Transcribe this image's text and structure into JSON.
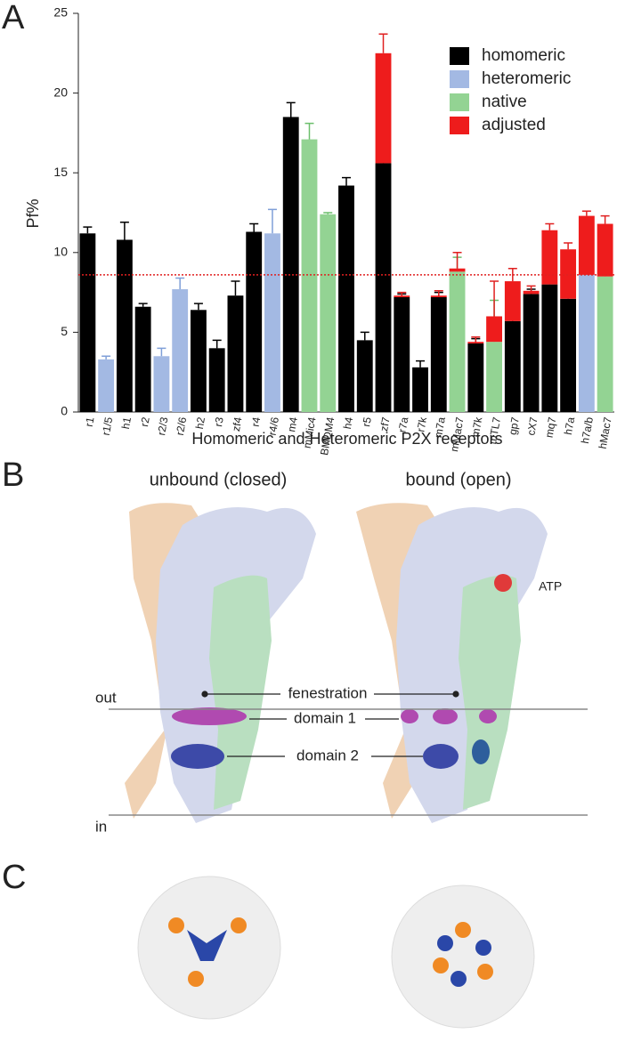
{
  "chart_data": {
    "type": "bar",
    "ylabel": "Pf%",
    "xlabel": "Homomeric and Heteromeric P2X receptors",
    "categories": [
      "r1",
      "r1/5",
      "h1",
      "r2",
      "r2/3",
      "r2/6",
      "h2",
      "r3",
      "zf4",
      "r4",
      "r4/6",
      "m4",
      "mMic4",
      "BMDM4",
      "h4",
      "r5",
      "zf7",
      "r7a",
      "r7k",
      "m7a",
      "mMac7",
      "m7k",
      "mTL7",
      "gp7",
      "cX7",
      "mq7",
      "h7a",
      "h7a/b",
      "hMac7"
    ],
    "series": [
      {
        "name": "homomeric",
        "color": "#000000",
        "errorColor": "#000000",
        "values": [
          11.2,
          null,
          10.8,
          6.6,
          null,
          null,
          6.4,
          4.0,
          7.3,
          11.3,
          null,
          18.5,
          null,
          null,
          14.2,
          4.5,
          15.6,
          7.2,
          2.8,
          7.2,
          null,
          4.3,
          null,
          5.7,
          7.4,
          8.0,
          7.1,
          null,
          null
        ],
        "errors": [
          0.4,
          null,
          1.1,
          0.2,
          null,
          null,
          0.4,
          0.5,
          0.9,
          0.5,
          null,
          0.9,
          null,
          null,
          0.5,
          0.5,
          1.2,
          0.2,
          0.4,
          0.3,
          null,
          0.3,
          null,
          0.7,
          0.3,
          0.4,
          0.4,
          null,
          null
        ]
      },
      {
        "name": "heteromeric",
        "color": "#a3b9e3",
        "errorColor": "#7f9fd8",
        "values": [
          null,
          3.3,
          null,
          null,
          3.5,
          7.7,
          null,
          null,
          null,
          null,
          11.2,
          null,
          null,
          null,
          null,
          null,
          null,
          null,
          null,
          null,
          null,
          null,
          null,
          null,
          null,
          null,
          null,
          8.6,
          null
        ],
        "errors": [
          null,
          0.2,
          null,
          null,
          0.5,
          0.7,
          null,
          null,
          null,
          null,
          1.5,
          null,
          null,
          null,
          null,
          null,
          null,
          null,
          null,
          null,
          null,
          null,
          null,
          null,
          null,
          null,
          null,
          0.3,
          null
        ]
      },
      {
        "name": "native",
        "color": "#93d393",
        "errorColor": "#6cbf6c",
        "values": [
          null,
          null,
          null,
          null,
          null,
          null,
          null,
          null,
          null,
          null,
          null,
          null,
          17.1,
          12.4,
          null,
          null,
          null,
          null,
          null,
          null,
          8.8,
          null,
          4.4,
          null,
          null,
          null,
          null,
          null,
          8.5
        ],
        "errors": [
          null,
          null,
          null,
          null,
          null,
          null,
          null,
          null,
          null,
          null,
          null,
          null,
          1.0,
          0.1,
          null,
          null,
          null,
          null,
          null,
          null,
          0.9,
          null,
          2.6,
          null,
          null,
          null,
          null,
          null,
          0.3
        ]
      },
      {
        "name": "adjusted",
        "color": "#ee1c1c",
        "errorColor": "#e02020",
        "values": [
          null,
          null,
          null,
          null,
          null,
          null,
          null,
          null,
          null,
          null,
          null,
          null,
          null,
          null,
          null,
          null,
          6.9,
          0.1,
          null,
          0.1,
          0.2,
          0.1,
          1.6,
          2.5,
          0.2,
          3.4,
          3.1,
          3.7,
          3.3
        ],
        "errors": [
          null,
          null,
          null,
          null,
          null,
          null,
          null,
          null,
          null,
          null,
          null,
          null,
          null,
          null,
          null,
          null,
          1.2,
          0.2,
          null,
          0.3,
          1.0,
          0.3,
          2.2,
          0.8,
          0.3,
          0.4,
          0.4,
          0.3,
          0.5
        ]
      }
    ],
    "reference_line": 8.6,
    "reference_color": "#e02020",
    "ylim": [
      0,
      25
    ],
    "yticks": [
      0,
      5,
      10,
      15,
      20,
      25
    ],
    "grid": false,
    "legend": "upper right"
  },
  "panels": {
    "a": "A",
    "b": "B",
    "c": "C",
    "b_titles": [
      "unbound (closed)",
      "bound (open)"
    ],
    "b_labels": {
      "atp": "ATP",
      "out": "out",
      "in": "in",
      "fenestration": "fenestration",
      "domain1": "domain 1",
      "domain2": "domain 2"
    }
  }
}
